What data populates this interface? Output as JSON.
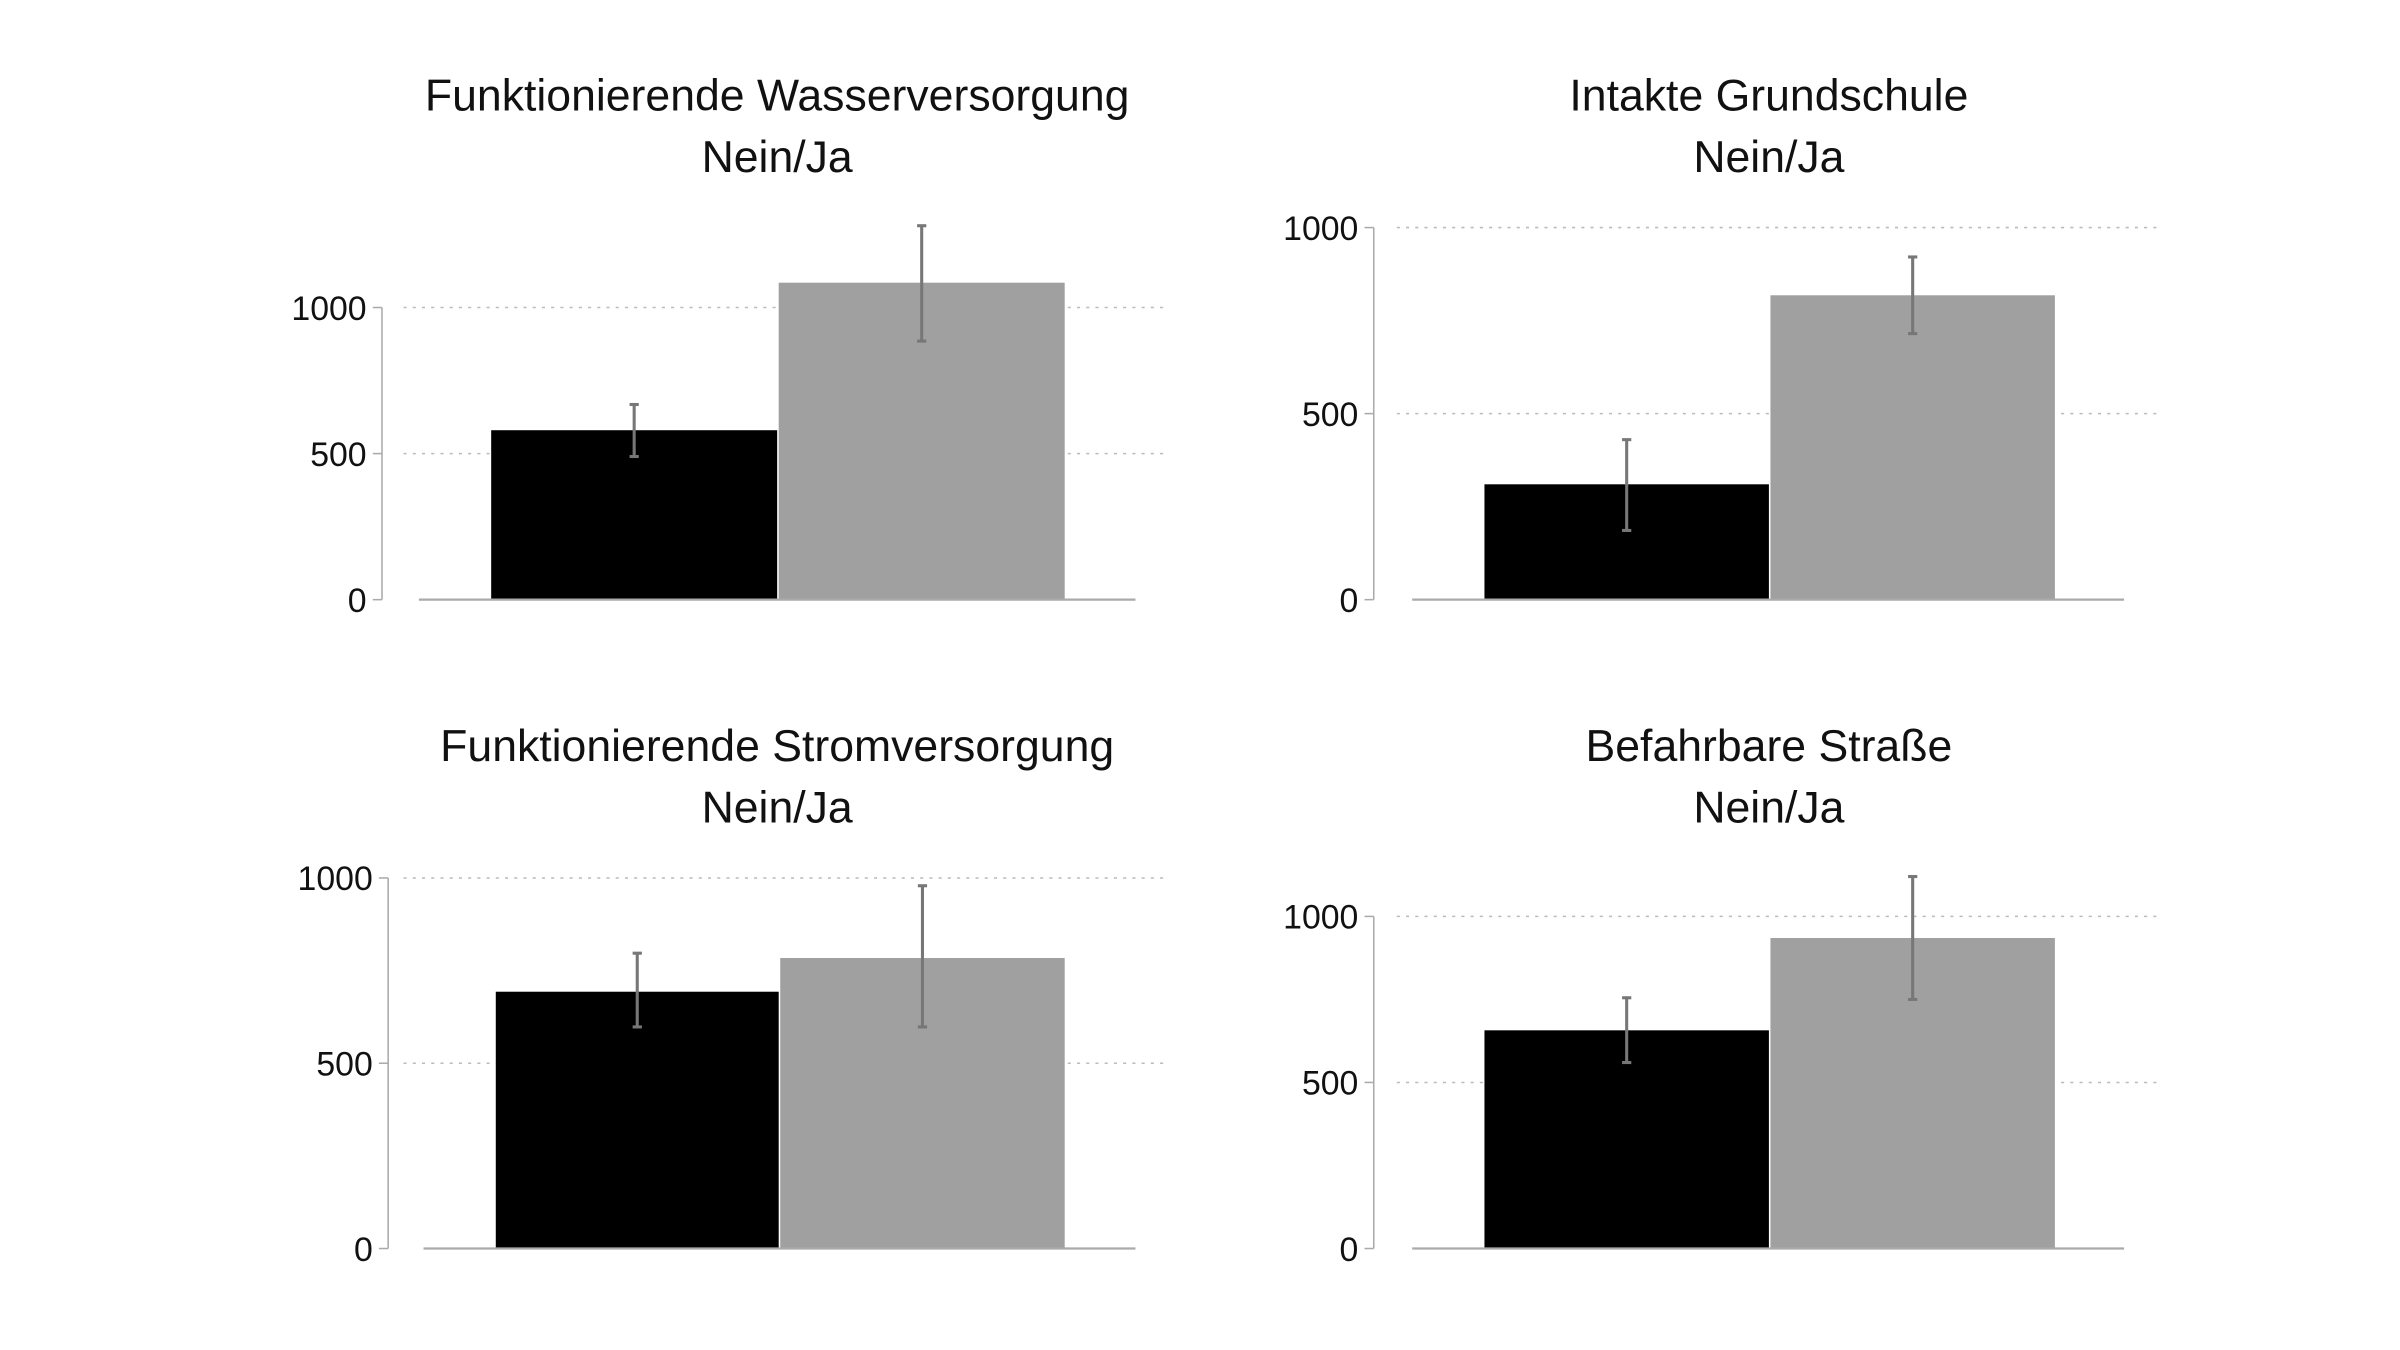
{
  "chart_data": [
    {
      "type": "bar",
      "title": "Funktionierende Wasserversorgung",
      "subtitle": "Nein/Ja",
      "categories": [
        "Nein",
        "Ja"
      ],
      "values": [
        580,
        1085
      ],
      "error_low": [
        490,
        885
      ],
      "error_high": [
        668,
        1280
      ],
      "yticks": [
        0,
        500,
        1000
      ],
      "ylim": [
        0,
        1000
      ],
      "grid": "dotted horizontal",
      "colors": [
        "#000000",
        "#a0a0a0"
      ]
    },
    {
      "type": "bar",
      "title": "Intakte Grundschule",
      "subtitle": "Nein/Ja",
      "categories": [
        "Nein",
        "Ja"
      ],
      "values": [
        310,
        818
      ],
      "error_low": [
        186,
        715
      ],
      "error_high": [
        430,
        921
      ],
      "yticks": [
        0,
        500,
        1000
      ],
      "ylim": [
        0,
        1000
      ],
      "grid": "dotted horizontal",
      "colors": [
        "#000000",
        "#a0a0a0"
      ]
    },
    {
      "type": "bar",
      "title": "Funktionierende Stromversorgung",
      "subtitle": "Nein/Ja",
      "categories": [
        "Nein",
        "Ja"
      ],
      "values": [
        693,
        784
      ],
      "error_low": [
        598,
        598
      ],
      "error_high": [
        797,
        979
      ],
      "yticks": [
        0,
        500,
        1000
      ],
      "ylim": [
        0,
        1000
      ],
      "grid": "dotted horizontal",
      "colors": [
        "#000000",
        "#a0a0a0"
      ]
    },
    {
      "type": "bar",
      "title": "Befahrbare Straße",
      "subtitle": "Nein/Ja",
      "categories": [
        "Nein",
        "Ja"
      ],
      "values": [
        657,
        935
      ],
      "error_low": [
        560,
        750
      ],
      "error_high": [
        755,
        1120
      ],
      "yticks": [
        0,
        500,
        1000
      ],
      "ylim": [
        0,
        1000
      ],
      "grid": "dotted horizontal",
      "colors": [
        "#000000",
        "#a0a0a0"
      ]
    }
  ]
}
